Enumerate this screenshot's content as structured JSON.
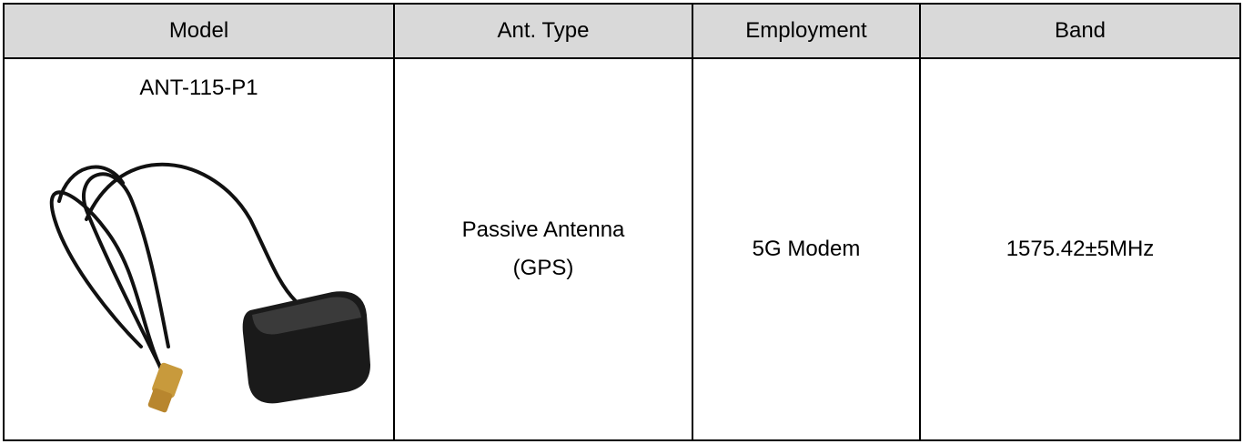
{
  "table": {
    "headers": [
      "Model",
      "Ant. Type",
      "Employment",
      "Band"
    ],
    "rows": [
      [
        "ANT-115-P1",
        [
          "Passive Antenna",
          "(GPS)"
        ],
        "5G Modem",
        "1575.42±5MHz"
      ]
    ]
  }
}
